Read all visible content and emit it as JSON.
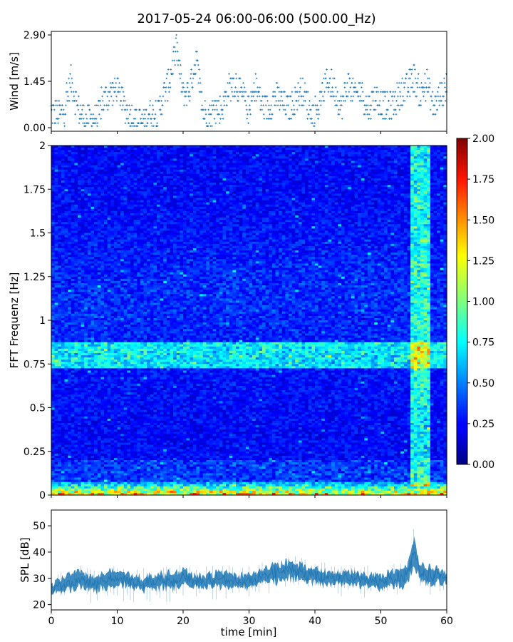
{
  "chart_data": [
    {
      "panel": "wind",
      "type": "scatter",
      "title": "2017-05-24 06:00-06:00 (500.00_Hz)",
      "ylabel": "Wind [m/s]",
      "xlim": [
        0,
        60
      ],
      "ylim": [
        0,
        2.9
      ],
      "yticks": [
        "0.00",
        "1.45",
        "2.90"
      ],
      "xticks_shown": false,
      "color": "#1f77b4",
      "marker": "+",
      "series": [
        {
          "x": [
            0,
            1,
            2,
            3,
            4,
            5,
            6,
            7,
            8,
            9,
            10,
            11,
            12,
            13,
            14,
            15,
            16,
            17,
            18,
            19,
            20,
            21,
            22,
            23,
            24,
            25,
            26,
            27,
            28,
            29,
            30,
            31,
            32,
            33,
            34,
            35,
            36,
            37,
            38,
            39,
            40,
            41,
            42,
            43,
            44,
            45,
            46,
            47,
            48,
            49,
            50,
            51,
            52,
            53,
            54,
            55,
            56,
            57,
            58,
            59,
            60
          ],
          "y": [
            0.5,
            0.4,
            0.5,
            1.5,
            0.6,
            0.3,
            0.3,
            0.3,
            0.9,
            1.1,
            1.2,
            0.7,
            0.4,
            0.2,
            0.2,
            0.5,
            0.3,
            1.0,
            1.5,
            2.5,
            1.0,
            1.2,
            2.2,
            0.5,
            0.4,
            0.6,
            0.6,
            1.3,
            1.4,
            1.0,
            0.5,
            1.3,
            0.7,
            0.6,
            1.0,
            0.8,
            0.6,
            0.9,
            1.2,
            0.7,
            0.3,
            1.0,
            1.5,
            1.2,
            0.6,
            1.4,
            1.0,
            1.2,
            0.6,
            1.0,
            0.8,
            0.6,
            0.8,
            1.1,
            1.2,
            1.6,
            1.0,
            1.4,
            0.6,
            1.0,
            1.3
          ]
        }
      ]
    },
    {
      "panel": "spectrogram",
      "type": "heatmap",
      "ylabel": "FFT Frequenz [Hz]",
      "xlim": [
        0,
        60
      ],
      "ylim": [
        0,
        2
      ],
      "yticks": [
        "0",
        "0.25",
        "0.5",
        "0.75",
        "1",
        "1.25",
        "1.5",
        "1.75",
        "2"
      ],
      "xticks_shown": false,
      "colormap": "jet",
      "colorbar": {
        "range": [
          0,
          2
        ],
        "ticks": [
          "0.00",
          "0.25",
          "0.50",
          "0.75",
          "1.00",
          "1.25",
          "1.50",
          "1.75",
          "2.00"
        ]
      },
      "features": {
        "background_level": 0.25,
        "band_frequency_hz": 0.8,
        "band_level": 0.75,
        "low_frequency_level": 1.5,
        "bright_column_start_min": 54.5,
        "bright_column_end_min": 57.5
      }
    },
    {
      "panel": "spl",
      "type": "line",
      "xlabel": "time [min]",
      "ylabel": "SPL [dB]",
      "xlim": [
        0,
        60
      ],
      "ylim": [
        18,
        56
      ],
      "xticks": [
        "0",
        "10",
        "20",
        "30",
        "40",
        "50",
        "60"
      ],
      "yticks": [
        "20",
        "30",
        "40",
        "50"
      ],
      "color": "#1f77b4",
      "series": [
        {
          "x": [
            0,
            2,
            4,
            6,
            8,
            10,
            12,
            14,
            16,
            18,
            20,
            22,
            24,
            26,
            28,
            30,
            32,
            34,
            36,
            38,
            40,
            42,
            44,
            46,
            48,
            50,
            52,
            54,
            55,
            56,
            58,
            60
          ],
          "y_center": [
            26,
            28,
            30,
            28,
            29,
            30,
            29,
            28,
            29,
            29,
            30,
            29,
            29,
            30,
            29,
            29,
            31,
            32,
            33,
            32,
            31,
            30,
            30,
            30,
            29,
            29,
            30,
            31,
            40,
            32,
            31,
            30
          ],
          "y_band": [
            4,
            6,
            7,
            6,
            6,
            6,
            5,
            5,
            6,
            6,
            6,
            5,
            5,
            6,
            5,
            5,
            6,
            7,
            7,
            6,
            6,
            5,
            5,
            5,
            5,
            6,
            6,
            7,
            12,
            7,
            6,
            5
          ]
        }
      ]
    }
  ]
}
